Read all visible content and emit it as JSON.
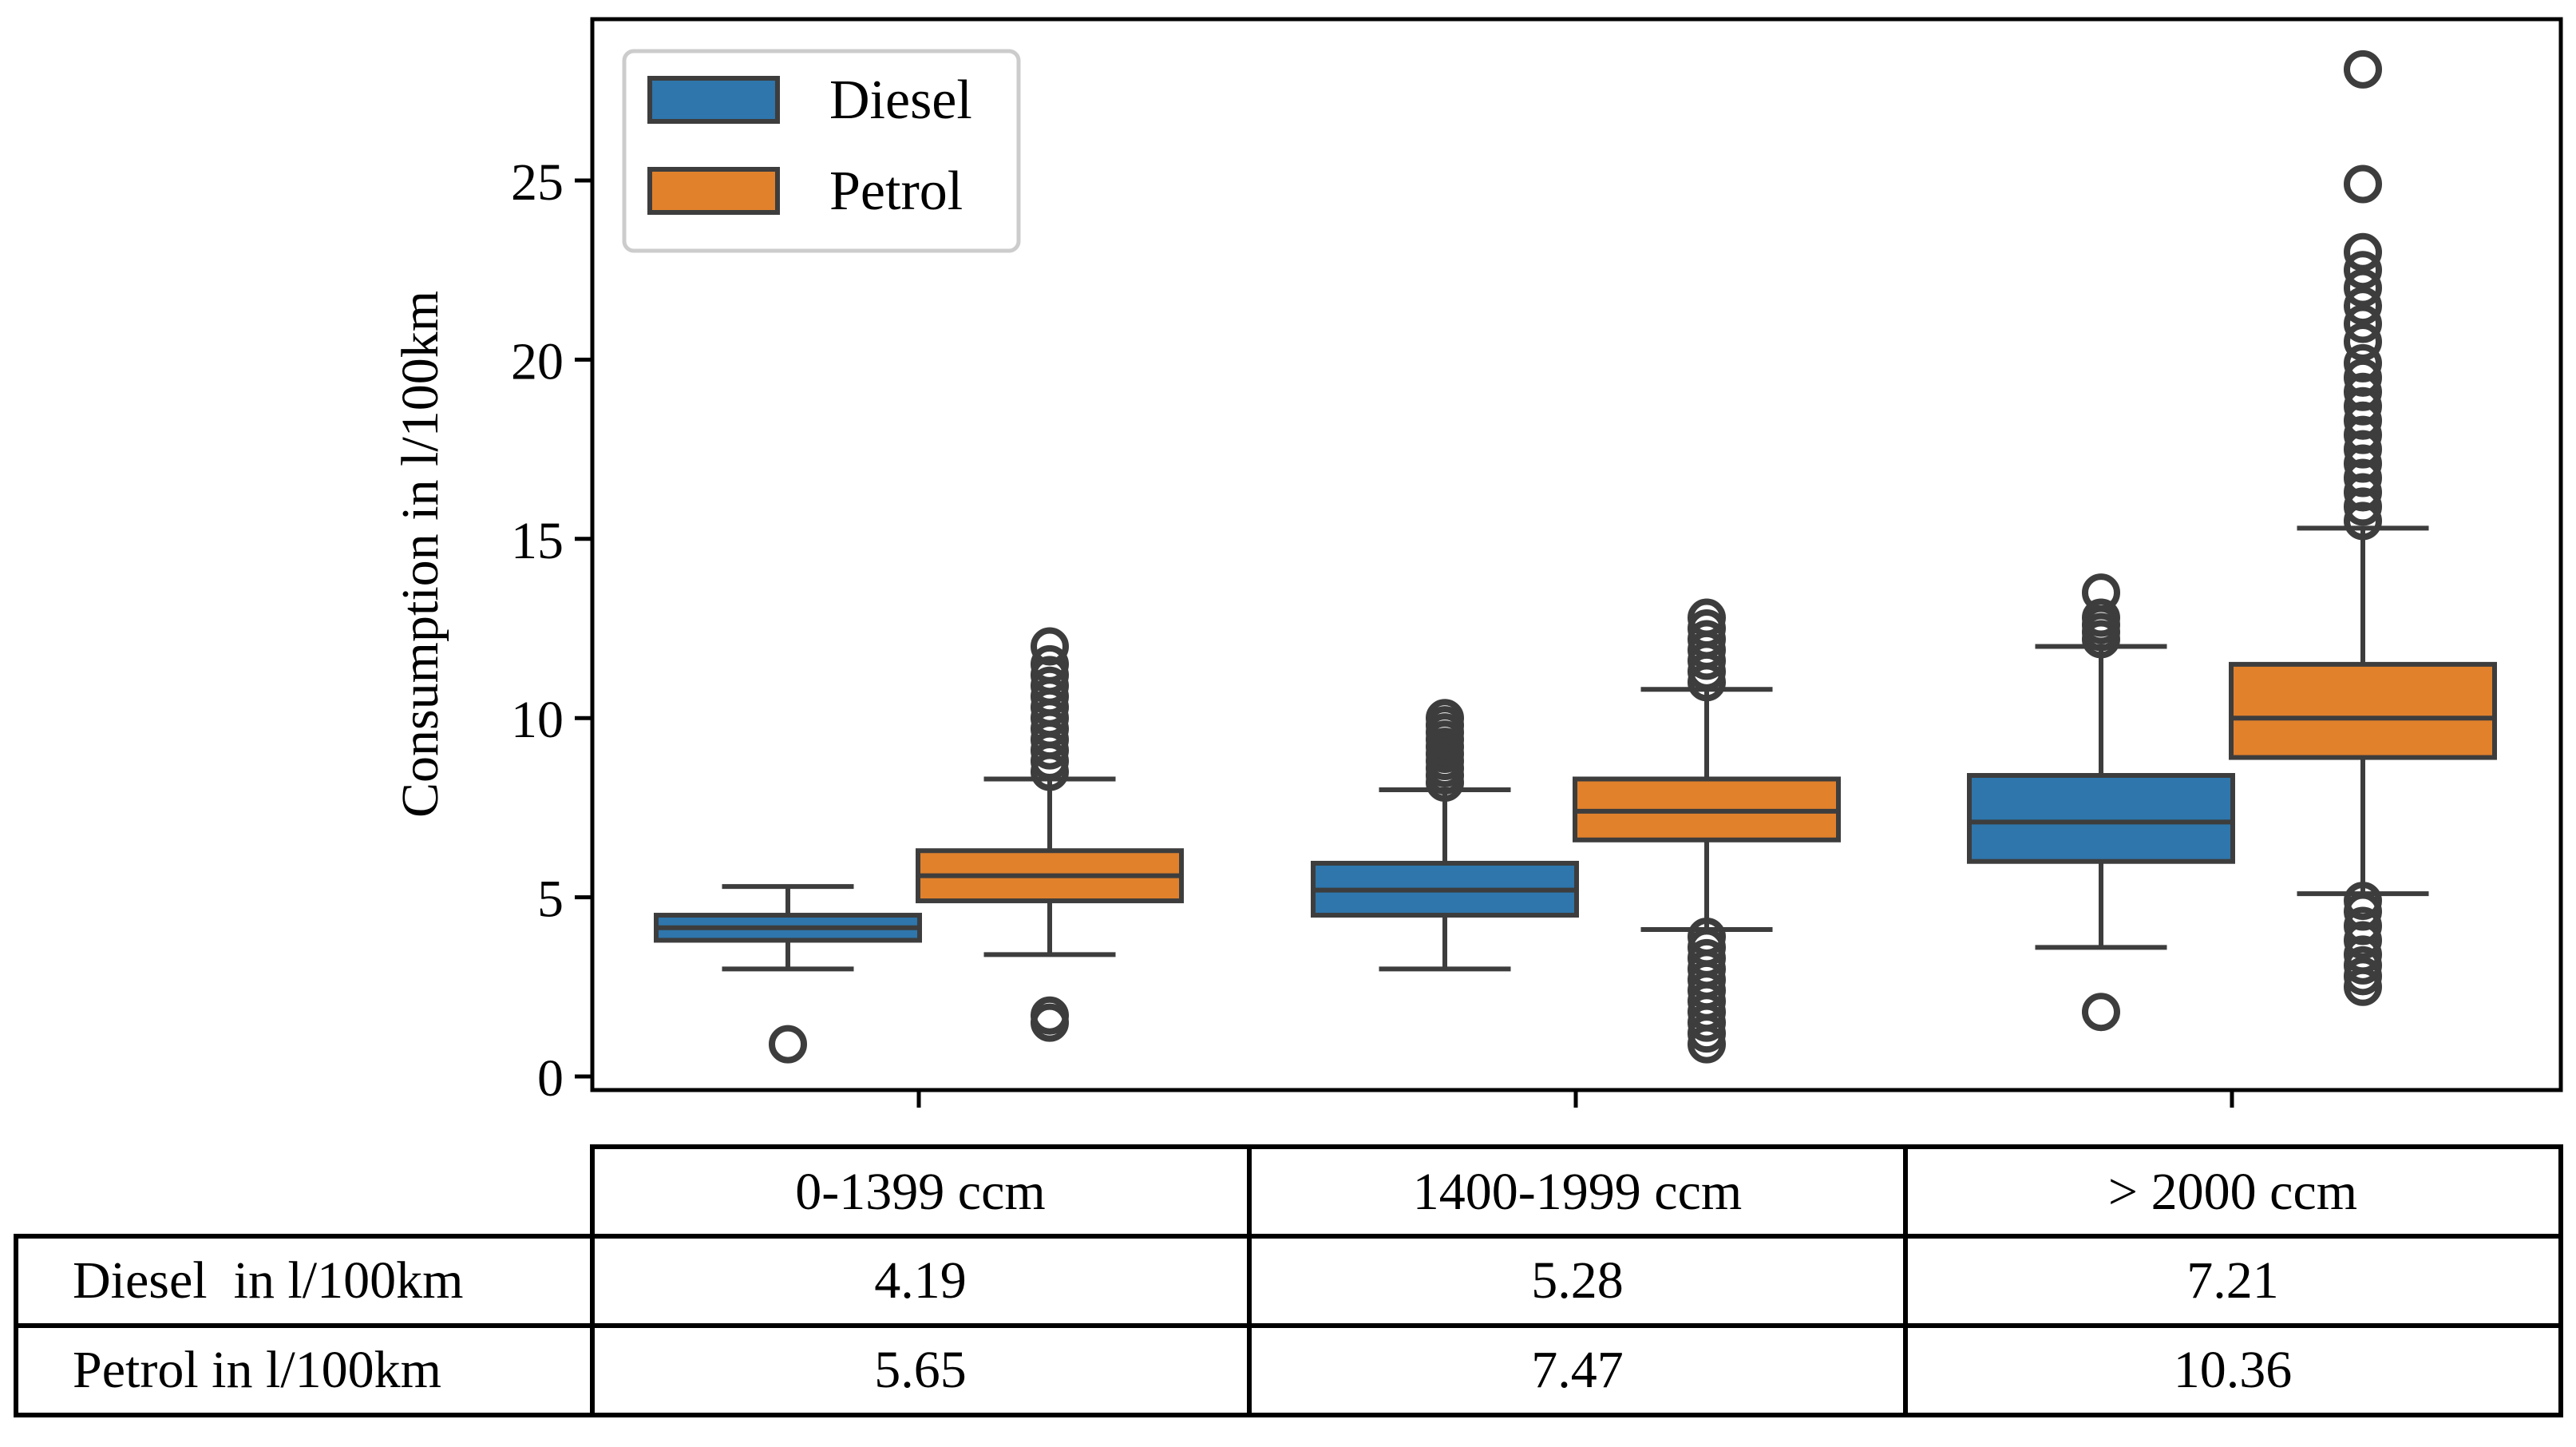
{
  "chart_data": {
    "type": "boxplot",
    "ylabel": "Consumption in l/100km",
    "ylim": [
      -0.5,
      29.5
    ],
    "yticks": [
      0,
      5,
      10,
      15,
      20,
      25
    ],
    "grid": false,
    "legend_position": "top-left",
    "categories": [
      "0-1399 ccm",
      "1400-1999 ccm",
      "> 2000 ccm"
    ],
    "series": [
      {
        "name": "Diesel",
        "color": "#2e76ac",
        "boxes": [
          {
            "whisker_low": 3.0,
            "q1": 3.8,
            "median": 4.15,
            "q3": 4.5,
            "whisker_high": 5.3,
            "outliers": [
              0.9
            ]
          },
          {
            "whisker_low": 3.0,
            "q1": 4.5,
            "median": 5.2,
            "q3": 5.95,
            "whisker_high": 8.0,
            "outliers": [
              8.2,
              8.4,
              8.6,
              8.8,
              9.0,
              9.2,
              9.4,
              9.6,
              9.8,
              10.0
            ]
          },
          {
            "whisker_low": 3.6,
            "q1": 6.0,
            "median": 7.1,
            "q3": 8.4,
            "whisker_high": 12.0,
            "outliers": [
              1.8,
              12.2,
              12.4,
              12.6,
              12.8,
              13.5
            ]
          }
        ]
      },
      {
        "name": "Petrol",
        "color": "#e1812c",
        "boxes": [
          {
            "whisker_low": 3.4,
            "q1": 4.9,
            "median": 5.6,
            "q3": 6.3,
            "whisker_high": 8.3,
            "outliers": [
              1.5,
              1.7,
              8.5,
              8.8,
              9.1,
              9.4,
              9.7,
              10.0,
              10.3,
              10.6,
              10.9,
              11.2,
              11.5,
              12.0
            ]
          },
          {
            "whisker_low": 4.1,
            "q1": 6.6,
            "median": 7.4,
            "q3": 8.3,
            "whisker_high": 10.8,
            "outliers": [
              0.9,
              1.2,
              1.5,
              1.8,
              2.1,
              2.4,
              2.7,
              3.0,
              3.3,
              3.6,
              3.9,
              11.0,
              11.3,
              11.6,
              11.9,
              12.2,
              12.5,
              12.8
            ]
          },
          {
            "whisker_low": 5.1,
            "q1": 8.9,
            "median": 10.0,
            "q3": 11.5,
            "whisker_high": 15.3,
            "outliers": [
              2.5,
              2.8,
              3.1,
              3.4,
              3.8,
              4.2,
              4.6,
              4.9,
              15.5,
              15.9,
              16.3,
              16.7,
              17.1,
              17.5,
              17.9,
              18.3,
              18.7,
              19.1,
              19.5,
              19.9,
              20.5,
              21.0,
              21.5,
              22.0,
              22.5,
              23.0,
              24.9,
              28.1
            ]
          }
        ]
      }
    ]
  },
  "table": {
    "header": [
      "0-1399 ccm",
      "1400-1999 ccm",
      "> 2000 ccm"
    ],
    "rows": [
      {
        "label": "Diesel  in l/100km",
        "values": [
          "4.19",
          "5.28",
          "7.21"
        ]
      },
      {
        "label": "Petrol in l/100km",
        "values": [
          "5.65",
          "7.47",
          "10.36"
        ]
      }
    ]
  }
}
